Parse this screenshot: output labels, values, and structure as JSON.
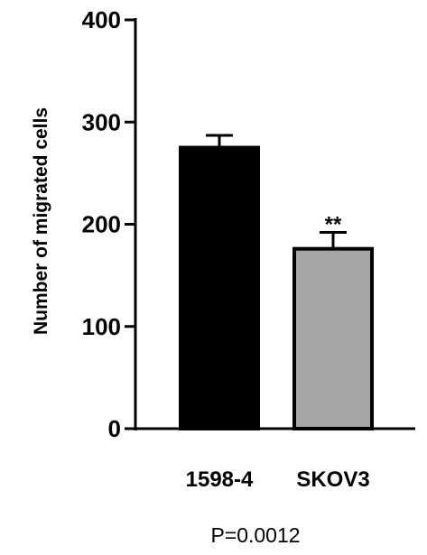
{
  "chart_data": {
    "type": "bar",
    "categories": [
      "1598-4",
      "SKOV3"
    ],
    "values": [
      275,
      176
    ],
    "errors": [
      12,
      16
    ],
    "significance": [
      "",
      "**"
    ],
    "ylabel": "Number of migrated cells",
    "xlabel": "",
    "title": "",
    "ylim": [
      0,
      400
    ],
    "yticks": [
      0,
      100,
      200,
      300,
      400
    ],
    "grid": false,
    "legend": "none",
    "colors": [
      "#000000",
      "#a6a6a6"
    ],
    "footnote": "P=0.0012"
  }
}
